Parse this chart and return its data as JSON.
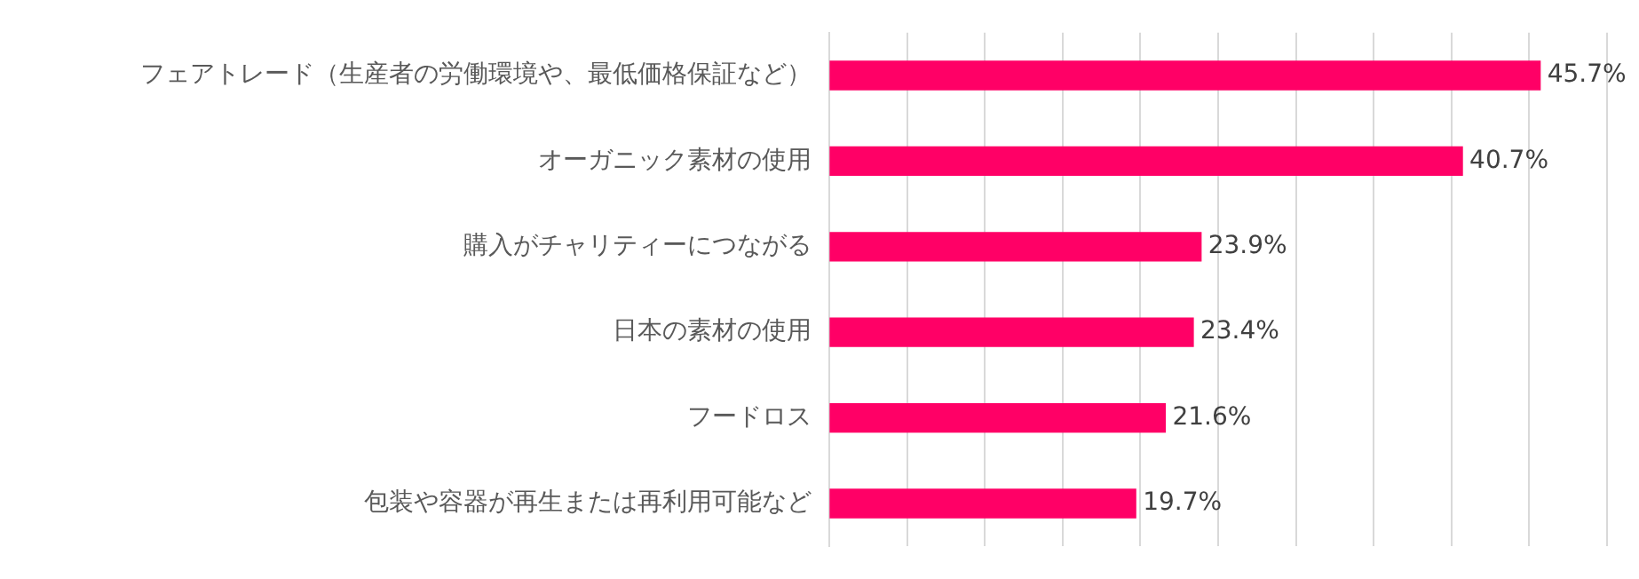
{
  "chart_data": {
    "type": "bar",
    "orientation": "horizontal",
    "categories": [
      "フェアトレード（生産者の労働環境や、最低価格保証など）",
      "オーガニック素材の使用",
      "購入がチャリティーにつながる",
      "日本の素材の使用",
      "フードロス",
      "包装や容器が再生または再利用可能など"
    ],
    "values": [
      45.7,
      40.7,
      23.9,
      23.4,
      21.6,
      19.7
    ],
    "value_labels": [
      "45.7%",
      "40.7%",
      "23.9%",
      "23.4%",
      "21.6%",
      "19.7%"
    ],
    "color": "#ff0066",
    "xlim": [
      0,
      50
    ],
    "xticks": [
      {
        "value": 0,
        "label": null
      },
      {
        "value": 5,
        "label": null
      },
      {
        "value": 10,
        "label": null
      },
      {
        "value": 15,
        "label": null
      },
      {
        "value": 20,
        "label": null
      },
      {
        "value": 25,
        "label": null
      },
      {
        "value": 30,
        "label": null
      },
      {
        "value": 35,
        "label": null
      },
      {
        "value": 40,
        "label": null
      },
      {
        "value": 45,
        "label": null
      },
      {
        "value": 50,
        "label": null
      }
    ],
    "grid": "x",
    "tick_labels": "y",
    "legend": false
  }
}
